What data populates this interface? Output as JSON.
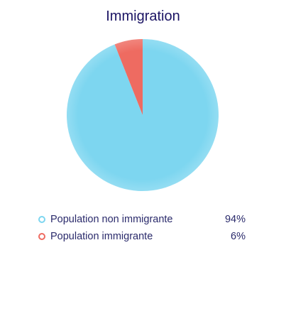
{
  "chart_data": {
    "type": "pie",
    "title": "Immigration",
    "slices": [
      {
        "label": "Population non immigrante",
        "value": 94,
        "display": "94%",
        "color": "#7dd6f0"
      },
      {
        "label": "Population immigrante",
        "value": 6,
        "display": "6%",
        "color": "#ee6b61"
      }
    ],
    "legend_position": "bottom"
  }
}
